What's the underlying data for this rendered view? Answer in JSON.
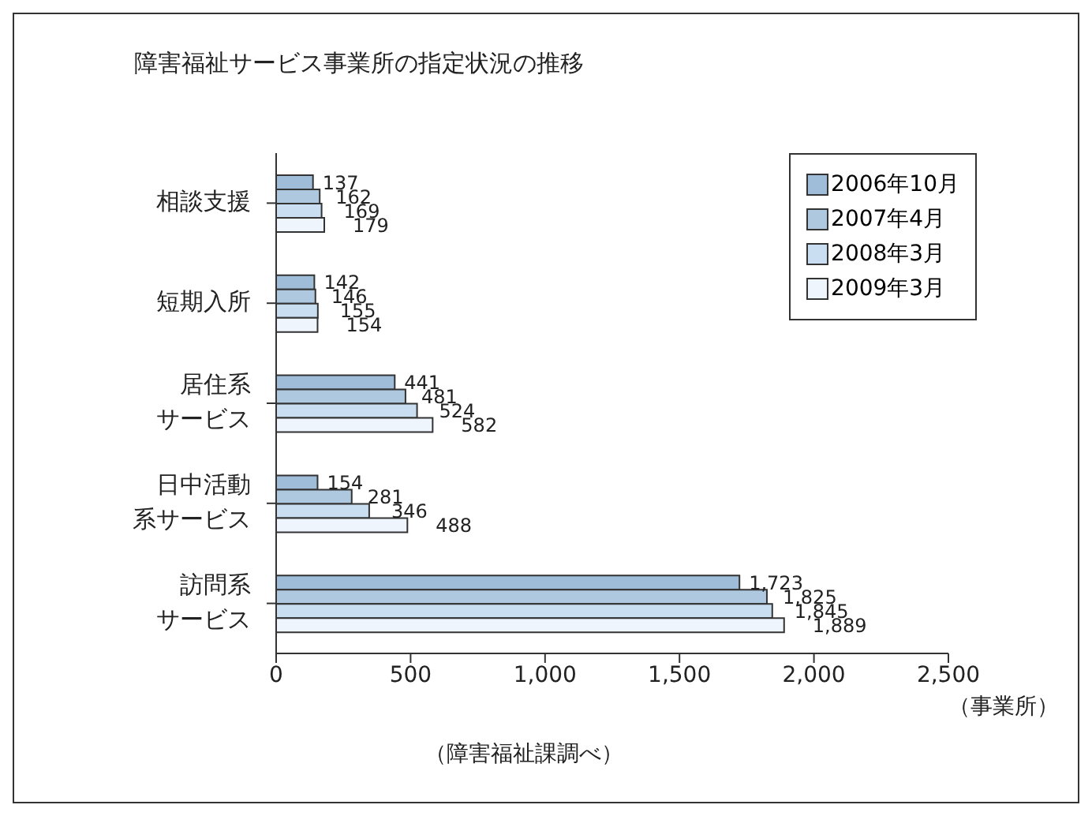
{
  "chart_data": {
    "type": "bar",
    "orientation": "horizontal",
    "title": "障害福祉サービス事業所の指定状況の推移",
    "categories": [
      "相談支援",
      "短期入所",
      "居住系サービス",
      "日中活動系サービス",
      "訪問系サービス"
    ],
    "series": [
      {
        "name": "2006年10月",
        "color": "#9fbcd8",
        "values": [
          137,
          142,
          441,
          154,
          1723
        ],
        "value_labels": [
          "137",
          "142",
          "441",
          "154",
          "1,723"
        ]
      },
      {
        "name": "2007年4月",
        "color": "#aec8e0",
        "values": [
          162,
          146,
          481,
          281,
          1825
        ],
        "value_labels": [
          "162",
          "146",
          "481",
          "281",
          "1,825"
        ]
      },
      {
        "name": "2008年3月",
        "color": "#c9def0",
        "values": [
          169,
          155,
          524,
          346,
          1845
        ],
        "value_labels": [
          "169",
          "155",
          "524",
          "346",
          "1,845"
        ]
      },
      {
        "name": "2009年3月",
        "color": "#eef5fc",
        "values": [
          179,
          154,
          582,
          488,
          1889
        ],
        "value_labels": [
          "179",
          "154",
          "582",
          "488",
          "1,889"
        ]
      }
    ],
    "xlim": [
      0,
      2500
    ],
    "xticks": [
      0,
      500,
      {
        "value": 1000,
        "label": "1,000"
      },
      {
        "value": 1500,
        "label": "1,500"
      },
      {
        "value": 2000,
        "label": "2,000"
      },
      {
        "value": 2500,
        "label": "2,500"
      }
    ],
    "xlabel": "（事業所）",
    "annotations": [
      "（障害福祉課調べ）"
    ],
    "grid": false,
    "legend": "top right"
  }
}
